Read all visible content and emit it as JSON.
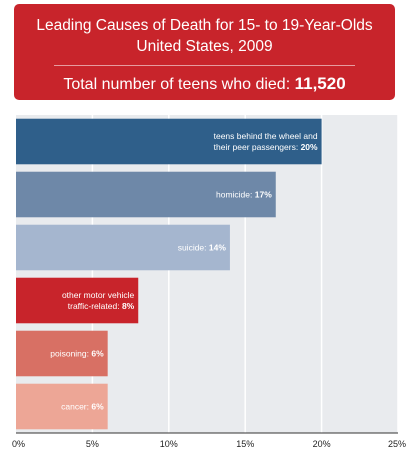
{
  "header": {
    "title_line1": "Leading Causes of Death for 15- to 19-Year-Olds",
    "title_line2": "United States, 2009",
    "total_label": "Total number of teens who died:",
    "total_value": "11,520"
  },
  "chart_data": {
    "type": "bar",
    "orientation": "horizontal",
    "title": "Leading Causes of Death for 15- to 19-Year-Olds",
    "subtitle": "United States, 2009",
    "bars": [
      {
        "label_lines": [
          "teens behind the wheel and",
          "their peer passengers:"
        ],
        "value": 20,
        "value_label": "20%",
        "color": "#2f5f8a"
      },
      {
        "label_lines": [
          "homicide:"
        ],
        "value": 17,
        "value_label": "17%",
        "color": "#6e88a8"
      },
      {
        "label_lines": [
          "suicide:"
        ],
        "value": 14,
        "value_label": "14%",
        "color": "#a5b6cf"
      },
      {
        "label_lines": [
          "other motor vehicle",
          "traffic-related:"
        ],
        "value": 8,
        "value_label": "8%",
        "color": "#c8242b"
      },
      {
        "label_lines": [
          "poisoning:"
        ],
        "value": 6,
        "value_label": "6%",
        "color": "#d87064"
      },
      {
        "label_lines": [
          "cancer:"
        ],
        "value": 6,
        "value_label": "6%",
        "color": "#eda696"
      }
    ],
    "x_ticks": [
      {
        "value": 0,
        "label": "0%"
      },
      {
        "value": 5,
        "label": "5%"
      },
      {
        "value": 10,
        "label": "10%"
      },
      {
        "value": 15,
        "label": "15%"
      },
      {
        "value": 20,
        "label": "20%"
      },
      {
        "value": 25,
        "label": "25%"
      }
    ],
    "xlim": [
      0,
      25
    ],
    "grid": true,
    "xlabel": "",
    "ylabel": ""
  }
}
